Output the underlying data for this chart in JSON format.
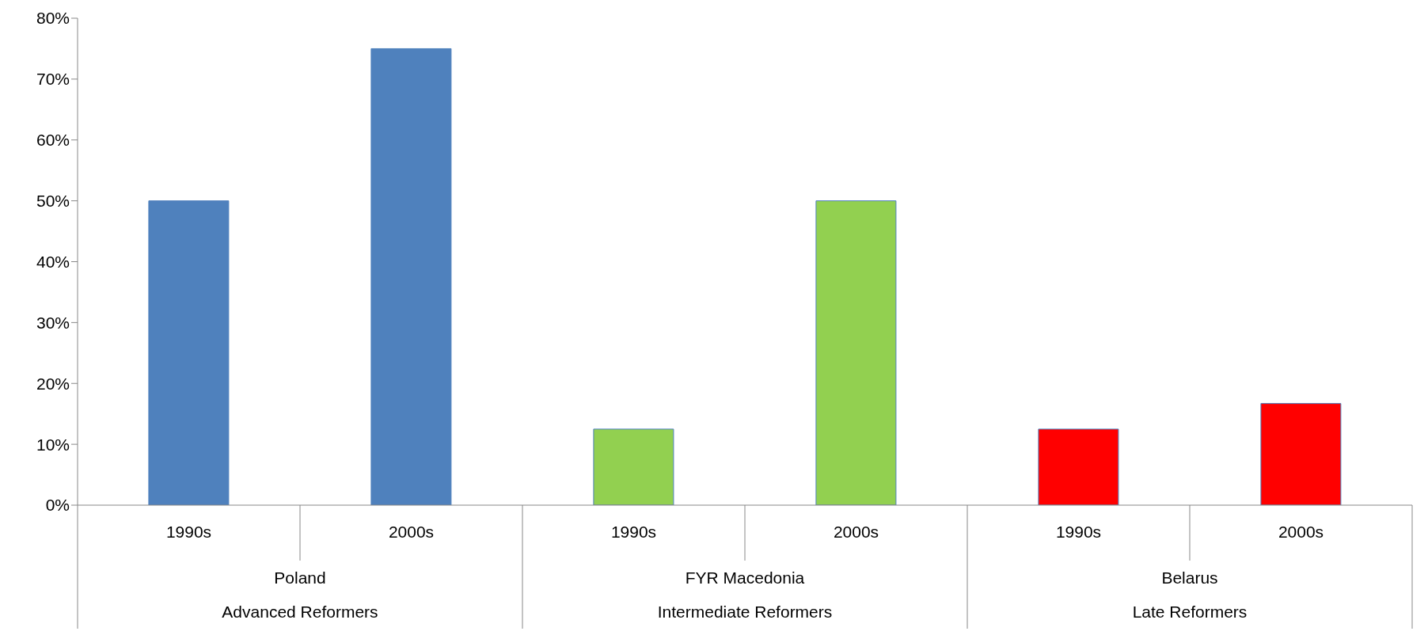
{
  "chart_data": {
    "type": "bar",
    "categories": [
      "1990s",
      "2000s",
      "1990s",
      "2000s",
      "1990s",
      "2000s"
    ],
    "values": [
      50,
      75,
      12.5,
      50,
      12.5,
      16.7
    ],
    "colors": [
      "#4f81bd",
      "#4f81bd",
      "#92d050",
      "#92d050",
      "#ff0000",
      "#ff0000"
    ],
    "ylim": [
      0,
      80
    ],
    "yticks": [
      {
        "value": 0,
        "label": "0%"
      },
      {
        "value": 10,
        "label": "10%"
      },
      {
        "value": 20,
        "label": "20%"
      },
      {
        "value": 30,
        "label": "30%"
      },
      {
        "value": 40,
        "label": "40%"
      },
      {
        "value": 50,
        "label": "50%"
      },
      {
        "value": 60,
        "label": "60%"
      },
      {
        "value": 70,
        "label": "70%"
      },
      {
        "value": 80,
        "label": "80%"
      }
    ],
    "annotations": [
      "Poland",
      "Advanced Reformers",
      "FYR Macedonia",
      "Intermediate Reformers",
      "Belarus",
      "Late Reformers"
    ],
    "grid": false
  }
}
